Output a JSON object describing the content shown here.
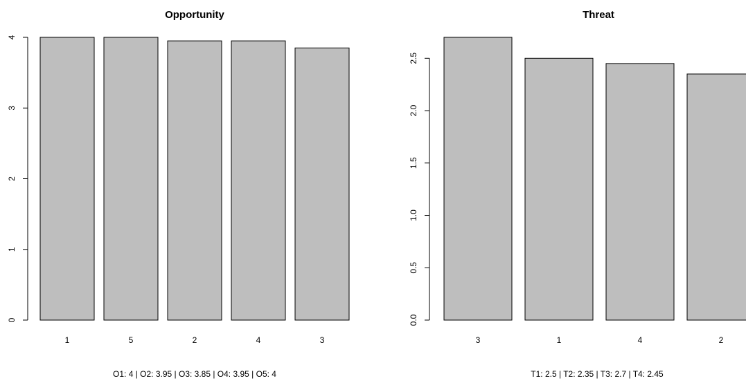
{
  "chart_data": [
    {
      "type": "bar",
      "title": "Opportunity",
      "categories": [
        "1",
        "5",
        "2",
        "4",
        "3"
      ],
      "values": [
        4,
        4,
        3.95,
        3.95,
        3.85
      ],
      "ylim": [
        0,
        4
      ],
      "yticks": [
        0,
        1,
        2,
        3,
        4
      ],
      "ytick_labels": [
        "0",
        "1",
        "2",
        "3",
        "4"
      ],
      "subtitle": "O1: 4  | O2: 3.95  | O3: 3.85  | O4: 3.95  | O5: 4",
      "grid": false,
      "bar_color": "#bebebe"
    },
    {
      "type": "bar",
      "title": "Threat",
      "categories": [
        "3",
        "1",
        "4",
        "2"
      ],
      "values": [
        2.7,
        2.5,
        2.45,
        2.35
      ],
      "ylim": [
        0,
        2.7
      ],
      "yticks": [
        0,
        0.5,
        1,
        1.5,
        2,
        2.5
      ],
      "ytick_labels": [
        "0.0",
        "0.5",
        "1.0",
        "1.5",
        "2.0",
        "2.5"
      ],
      "subtitle": "T1: 2.5  | T2: 2.35  | T3: 2.7  | T4: 2.45",
      "grid": false,
      "bar_color": "#bebebe"
    }
  ]
}
